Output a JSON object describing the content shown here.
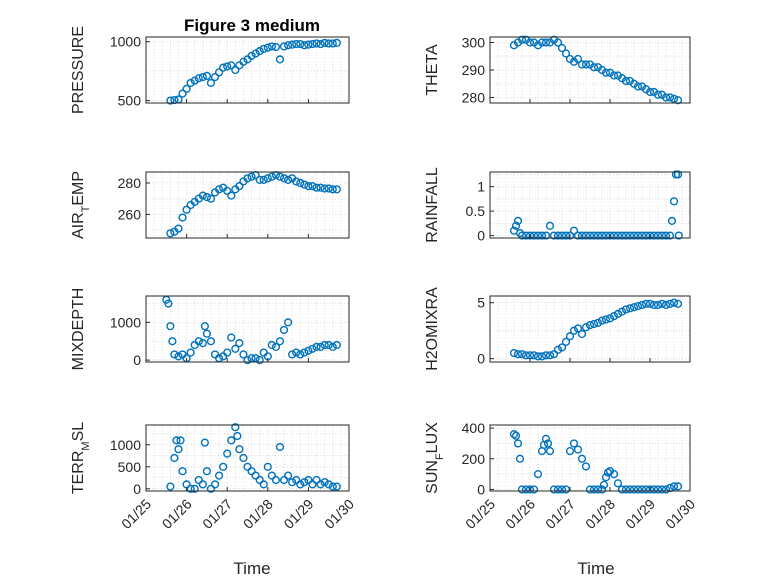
{
  "figure": {
    "title": "Figure 3 medium",
    "colors": {
      "marker": "#0072BD",
      "axes": "#262626",
      "grid": "#dcdcdc"
    }
  },
  "chart_data": [
    {
      "type": "scatter",
      "title": "Figure 3 medium",
      "ylabel": "PRESSURE",
      "ylim": [
        480,
        1040
      ],
      "yticks": [
        500,
        1000
      ],
      "xlim": [
        0,
        5
      ],
      "xticks": [
        0,
        1,
        2,
        3,
        4,
        5
      ],
      "xticklabels": [
        "01/25",
        "01/26",
        "01/27",
        "01/28",
        "01/29",
        "01/30"
      ],
      "xlabel": "",
      "grid": true,
      "x": [
        0.6,
        0.7,
        0.8,
        0.9,
        1.0,
        1.1,
        1.2,
        1.3,
        1.4,
        1.5,
        1.6,
        1.7,
        1.8,
        1.9,
        2.0,
        2.1,
        2.2,
        2.3,
        2.4,
        2.5,
        2.6,
        2.7,
        2.8,
        2.9,
        3.0,
        3.1,
        3.2,
        3.3,
        3.4,
        3.5,
        3.6,
        3.7,
        3.8,
        3.9,
        4.0,
        4.1,
        4.2,
        4.3,
        4.4,
        4.5,
        4.6,
        4.7
      ],
      "y": [
        500,
        505,
        510,
        560,
        600,
        650,
        670,
        690,
        700,
        710,
        650,
        700,
        740,
        780,
        790,
        800,
        760,
        800,
        830,
        850,
        880,
        900,
        920,
        940,
        950,
        960,
        955,
        850,
        960,
        970,
        975,
        980,
        980,
        970,
        975,
        980,
        985,
        980,
        990,
        985,
        985,
        990
      ]
    },
    {
      "type": "scatter",
      "ylabel": "THETA",
      "ylim": [
        278,
        302
      ],
      "yticks": [
        280,
        290,
        300
      ],
      "xlim": [
        0,
        5
      ],
      "xticks": [
        0,
        1,
        2,
        3,
        4,
        5
      ],
      "xticklabels": [
        "01/25",
        "01/26",
        "01/27",
        "01/28",
        "01/29",
        "01/30"
      ],
      "xlabel": "",
      "grid": true,
      "x": [
        0.6,
        0.7,
        0.8,
        0.9,
        1.0,
        1.1,
        1.2,
        1.3,
        1.4,
        1.5,
        1.6,
        1.7,
        1.8,
        1.9,
        2.0,
        2.1,
        2.2,
        2.3,
        2.4,
        2.5,
        2.6,
        2.7,
        2.8,
        2.9,
        3.0,
        3.1,
        3.2,
        3.3,
        3.4,
        3.5,
        3.6,
        3.7,
        3.8,
        3.9,
        4.0,
        4.1,
        4.2,
        4.3,
        4.4,
        4.5,
        4.6,
        4.7
      ],
      "y": [
        299,
        300,
        301,
        301,
        300,
        300,
        299,
        300,
        300,
        300,
        301,
        300,
        298,
        296,
        294,
        293,
        294,
        292,
        292,
        292,
        291,
        291,
        290,
        289,
        289,
        288,
        288,
        287,
        286,
        286,
        285,
        284,
        284,
        283,
        282,
        282,
        281,
        281,
        280,
        280,
        279.5,
        279
      ]
    },
    {
      "type": "scatter",
      "ylabel": "AIR_TEMP",
      "ylim": [
        245,
        287
      ],
      "yticks": [
        260,
        280
      ],
      "xlim": [
        0,
        5
      ],
      "xticks": [
        0,
        1,
        2,
        3,
        4,
        5
      ],
      "xticklabels": [
        "01/25",
        "01/26",
        "01/27",
        "01/28",
        "01/29",
        "01/30"
      ],
      "xlabel": "",
      "grid": true,
      "x": [
        0.6,
        0.7,
        0.8,
        0.9,
        1.0,
        1.1,
        1.2,
        1.3,
        1.4,
        1.5,
        1.6,
        1.7,
        1.8,
        1.9,
        2.0,
        2.1,
        2.2,
        2.3,
        2.4,
        2.5,
        2.6,
        2.7,
        2.8,
        2.9,
        3.0,
        3.1,
        3.2,
        3.3,
        3.4,
        3.5,
        3.6,
        3.7,
        3.8,
        3.9,
        4.0,
        4.1,
        4.2,
        4.3,
        4.4,
        4.5,
        4.6,
        4.7
      ],
      "y": [
        248,
        249,
        251,
        258,
        263,
        266,
        268,
        270,
        272,
        271,
        270,
        274,
        276,
        277,
        275,
        272,
        276,
        278,
        281,
        283,
        284,
        285,
        282,
        282,
        283,
        284,
        285,
        284,
        283,
        282,
        283,
        281,
        280,
        279,
        278,
        278,
        277,
        277,
        276.5,
        276.5,
        276,
        276
      ]
    },
    {
      "type": "scatter",
      "ylabel": "RAINFALL",
      "ylim": [
        -0.05,
        1.3
      ],
      "yticks": [
        0,
        0.5,
        1
      ],
      "yticklabels": [
        "0",
        "0.5",
        "1"
      ],
      "xlim": [
        0,
        5
      ],
      "xticks": [
        0,
        1,
        2,
        3,
        4,
        5
      ],
      "xticklabels": [
        "01/25",
        "01/26",
        "01/27",
        "01/28",
        "01/29",
        "01/30"
      ],
      "xlabel": "",
      "grid": true,
      "x": [
        0.6,
        0.65,
        0.7,
        0.75,
        0.8,
        0.9,
        1.0,
        1.1,
        1.2,
        1.3,
        1.4,
        1.5,
        1.6,
        1.7,
        1.8,
        1.9,
        2.0,
        2.1,
        2.2,
        2.3,
        2.4,
        2.5,
        2.6,
        2.7,
        2.8,
        2.9,
        3.0,
        3.1,
        3.2,
        3.3,
        3.4,
        3.5,
        3.6,
        3.7,
        3.8,
        3.9,
        4.0,
        4.1,
        4.2,
        4.3,
        4.4,
        4.5,
        4.55,
        4.6,
        4.65,
        4.7,
        4.72
      ],
      "y": [
        0.1,
        0.2,
        0.3,
        0.05,
        0,
        0,
        0,
        0,
        0,
        0,
        0,
        0.2,
        0,
        0,
        0,
        0,
        0,
        0.1,
        0,
        0,
        0,
        0,
        0,
        0,
        0,
        0,
        0,
        0,
        0,
        0,
        0,
        0,
        0,
        0,
        0,
        0,
        0,
        0,
        0,
        0,
        0,
        0,
        0.3,
        0.7,
        1.25,
        1.25,
        0
      ]
    },
    {
      "type": "scatter",
      "ylabel": "MIXDEPTH",
      "ylim": [
        -50,
        1700
      ],
      "yticks": [
        0,
        1000
      ],
      "xlim": [
        0,
        5
      ],
      "xticks": [
        0,
        1,
        2,
        3,
        4,
        5
      ],
      "xticklabels": [
        "01/25",
        "01/26",
        "01/27",
        "01/28",
        "01/29",
        "01/30"
      ],
      "xlabel": "",
      "grid": true,
      "x": [
        0.5,
        0.55,
        0.6,
        0.65,
        0.7,
        0.8,
        0.9,
        1.0,
        1.1,
        1.2,
        1.3,
        1.4,
        1.45,
        1.5,
        1.6,
        1.7,
        1.8,
        1.9,
        2.0,
        2.1,
        2.2,
        2.3,
        2.4,
        2.5,
        2.6,
        2.7,
        2.8,
        2.9,
        3.0,
        3.1,
        3.2,
        3.3,
        3.4,
        3.5,
        3.6,
        3.7,
        3.8,
        3.9,
        4.0,
        4.1,
        4.2,
        4.3,
        4.4,
        4.5,
        4.6,
        4.7
      ],
      "y": [
        1600,
        1500,
        900,
        500,
        150,
        100,
        150,
        50,
        200,
        400,
        500,
        450,
        900,
        700,
        500,
        150,
        50,
        100,
        200,
        600,
        300,
        450,
        150,
        0,
        50,
        50,
        0,
        200,
        100,
        400,
        350,
        500,
        800,
        1000,
        150,
        200,
        150,
        200,
        250,
        300,
        350,
        350,
        400,
        400,
        350,
        400
      ]
    },
    {
      "type": "scatter",
      "ylabel": "H2OMIXRA",
      "ylim": [
        -0.3,
        5.6
      ],
      "yticks": [
        0,
        5
      ],
      "xlim": [
        0,
        5
      ],
      "xticks": [
        0,
        1,
        2,
        3,
        4,
        5
      ],
      "xticklabels": [
        "01/25",
        "01/26",
        "01/27",
        "01/28",
        "01/29",
        "01/30"
      ],
      "xlabel": "",
      "grid": true,
      "x": [
        0.6,
        0.7,
        0.8,
        0.9,
        1.0,
        1.1,
        1.2,
        1.3,
        1.4,
        1.5,
        1.6,
        1.7,
        1.8,
        1.9,
        2.0,
        2.1,
        2.2,
        2.3,
        2.4,
        2.5,
        2.6,
        2.7,
        2.8,
        2.9,
        3.0,
        3.1,
        3.2,
        3.3,
        3.4,
        3.5,
        3.6,
        3.7,
        3.8,
        3.9,
        4.0,
        4.1,
        4.2,
        4.3,
        4.4,
        4.5,
        4.6,
        4.7
      ],
      "y": [
        0.5,
        0.4,
        0.4,
        0.3,
        0.3,
        0.3,
        0.2,
        0.2,
        0.3,
        0.3,
        0.4,
        0.8,
        1.0,
        1.5,
        2.0,
        2.5,
        2.7,
        2.2,
        2.8,
        3.0,
        3.1,
        3.2,
        3.4,
        3.5,
        3.6,
        3.8,
        4.0,
        4.2,
        4.4,
        4.5,
        4.6,
        4.7,
        4.8,
        4.9,
        4.9,
        4.8,
        4.8,
        4.9,
        4.8,
        4.9,
        5.0,
        4.9
      ]
    },
    {
      "type": "scatter",
      "ylabel": "TERR_MSL",
      "ylim": [
        -50,
        1450
      ],
      "yticks": [
        0,
        500,
        1000
      ],
      "xlim": [
        0,
        5
      ],
      "xticks": [
        0,
        1,
        2,
        3,
        4,
        5
      ],
      "xticklabels": [
        "01/25",
        "01/26",
        "01/27",
        "01/28",
        "01/29",
        "01/30"
      ],
      "xlabel": "",
      "grid": true,
      "x": [
        0.6,
        0.7,
        0.75,
        0.8,
        0.85,
        0.9,
        1.0,
        1.1,
        1.2,
        1.3,
        1.4,
        1.45,
        1.5,
        1.6,
        1.7,
        1.8,
        1.9,
        2.0,
        2.1,
        2.2,
        2.25,
        2.3,
        2.4,
        2.5,
        2.6,
        2.7,
        2.8,
        2.9,
        3.0,
        3.1,
        3.2,
        3.3,
        3.4,
        3.5,
        3.6,
        3.7,
        3.8,
        3.9,
        4.0,
        4.1,
        4.2,
        4.3,
        4.4,
        4.5,
        4.6,
        4.7
      ],
      "y": [
        50,
        700,
        1100,
        900,
        1100,
        400,
        100,
        0,
        0,
        200,
        100,
        1050,
        400,
        0,
        100,
        300,
        500,
        800,
        1100,
        1400,
        1200,
        900,
        700,
        500,
        400,
        300,
        200,
        100,
        500,
        300,
        200,
        950,
        200,
        300,
        150,
        200,
        100,
        150,
        200,
        100,
        200,
        100,
        150,
        100,
        50,
        50
      ]
    },
    {
      "type": "scatter",
      "ylabel": "SUN_FLUX",
      "ylim": [
        -10,
        420
      ],
      "yticks": [
        0,
        200,
        400
      ],
      "xlim": [
        0,
        5
      ],
      "xticks": [
        0,
        1,
        2,
        3,
        4,
        5
      ],
      "xticklabels": [
        "01/25",
        "01/26",
        "01/27",
        "01/28",
        "01/29",
        "01/30"
      ],
      "xlabel": "",
      "grid": true,
      "x": [
        0.6,
        0.65,
        0.7,
        0.75,
        0.8,
        0.9,
        1.0,
        1.1,
        1.2,
        1.3,
        1.35,
        1.4,
        1.45,
        1.5,
        1.6,
        1.7,
        1.8,
        1.9,
        2.0,
        2.1,
        2.2,
        2.3,
        2.4,
        2.5,
        2.6,
        2.7,
        2.8,
        2.85,
        2.9,
        2.95,
        3.0,
        3.1,
        3.2,
        3.3,
        3.4,
        3.5,
        3.6,
        3.7,
        3.8,
        3.9,
        4.0,
        4.1,
        4.2,
        4.3,
        4.4,
        4.5,
        4.6,
        4.7
      ],
      "y": [
        360,
        350,
        300,
        200,
        0,
        0,
        0,
        0,
        100,
        250,
        290,
        330,
        300,
        250,
        0,
        0,
        0,
        0,
        250,
        300,
        260,
        200,
        150,
        0,
        0,
        0,
        0,
        30,
        80,
        110,
        120,
        100,
        40,
        0,
        0,
        0,
        0,
        0,
        0,
        0,
        0,
        0,
        0,
        0,
        0,
        10,
        20,
        20
      ]
    }
  ],
  "xlabels": {
    "left": "Time",
    "right": "Time"
  }
}
